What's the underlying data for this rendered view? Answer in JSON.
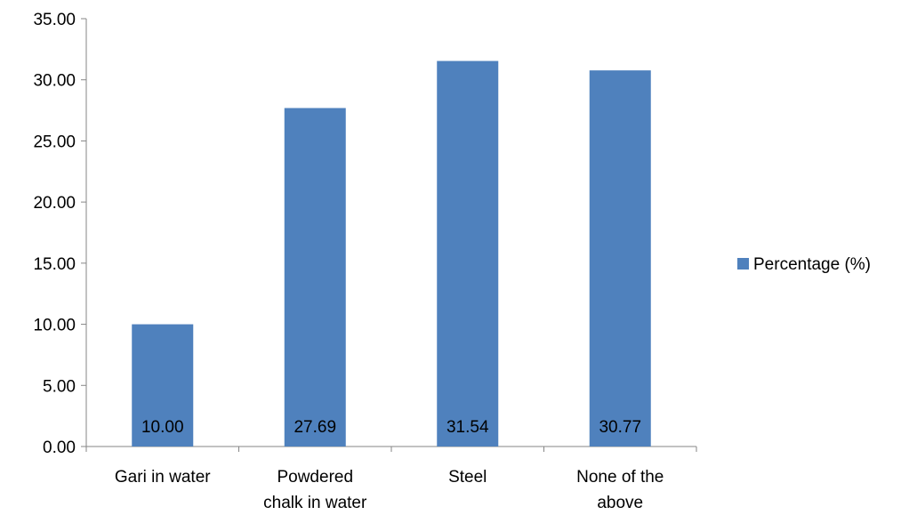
{
  "chart_data": {
    "type": "bar",
    "categories": [
      "Gari in water",
      "Powdered chalk in water",
      "Steel",
      "None of the above"
    ],
    "category_lines": [
      [
        "Gari in water"
      ],
      [
        "Powdered",
        "chalk in water"
      ],
      [
        "Steel"
      ],
      [
        "None of the",
        "above"
      ]
    ],
    "series": [
      {
        "name": "Percentage (%)",
        "values": [
          10.0,
          27.69,
          31.54,
          30.77
        ],
        "color": "#4F81BD"
      }
    ],
    "data_labels": [
      "10.00",
      "27.69",
      "31.54",
      "30.77"
    ],
    "y_ticks": [
      "0.00",
      "5.00",
      "10.00",
      "15.00",
      "20.00",
      "25.00",
      "30.00",
      "35.00"
    ],
    "ylim": [
      0,
      35
    ],
    "title": "",
    "xlabel": "",
    "ylabel": "",
    "grid": false,
    "legend_position": "right"
  }
}
